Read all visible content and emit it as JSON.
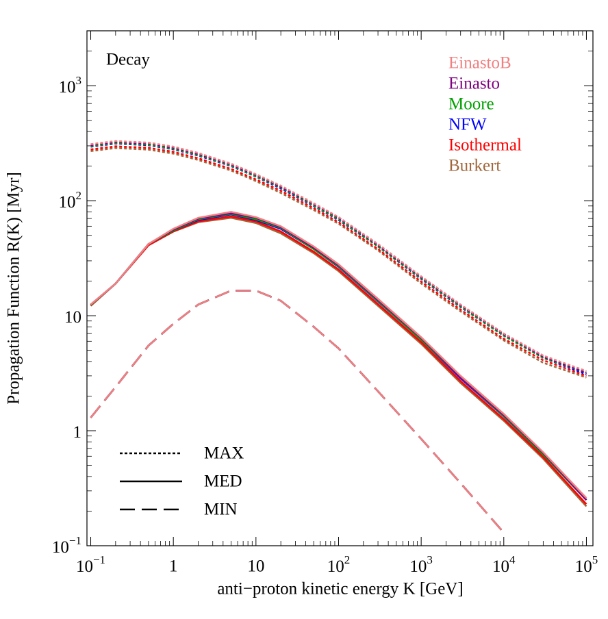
{
  "chart_data": {
    "type": "line",
    "annotation": "Decay",
    "xlabel": "anti−proton kinetic energy K [GeV]",
    "ylabel": "Propagation Function R(K) [Myr]",
    "log_x": true,
    "log_y": true,
    "xlim": [
      0.09,
      120000
    ],
    "ylim": [
      0.1,
      3000
    ],
    "xticks": [
      {
        "value": 0.1,
        "label": "10",
        "exp": "−1"
      },
      1,
      10,
      {
        "value": 100,
        "label": "10",
        "exp": "2"
      },
      {
        "value": 1000,
        "label": "10",
        "exp": "3"
      },
      {
        "value": 10000,
        "label": "10",
        "exp": "4"
      },
      {
        "value": 100000,
        "label": "10",
        "exp": "5"
      }
    ],
    "yticks": [
      {
        "value": 0.1,
        "label": "10",
        "exp": "−1"
      },
      1,
      10,
      {
        "value": 100,
        "label": "10",
        "exp": "2"
      },
      {
        "value": 1000,
        "label": "10",
        "exp": "3"
      }
    ],
    "models": [
      {
        "name": "MAX",
        "dash": "4 3"
      },
      {
        "name": "MED",
        "dash": "none"
      },
      {
        "name": "MIN",
        "dash": "22 10"
      }
    ],
    "x": [
      0.1,
      0.2,
      0.5,
      1,
      2,
      5,
      10,
      20,
      50,
      100,
      300,
      1000,
      3000,
      10000,
      30000,
      100000
    ],
    "series": [
      {
        "name": "EinastoB",
        "color": "#f08080",
        "values": [
          [
            310,
            330,
            320,
            295,
            260,
            210,
            170,
            135,
            95,
            72,
            42,
            22,
            12.5,
            7,
            4.5,
            3.3
          ],
          [
            12.5,
            19,
            42,
            57,
            71,
            80,
            72,
            60,
            40,
            28,
            14,
            6.5,
            3,
            1.4,
            0.65,
            0.26
          ],
          [
            1.3,
            2.4,
            5.5,
            8.5,
            12.5,
            16.5,
            16.5,
            13.5,
            8,
            5.2,
            2.2,
            0.85,
            0.35,
            0.13,
            null,
            null
          ]
        ]
      },
      {
        "name": "Einasto",
        "color": "#800080",
        "values": [
          [
            304,
            323,
            314,
            289,
            255,
            206,
            167,
            132,
            93,
            71,
            41,
            21.6,
            12.3,
            6.9,
            4.4,
            3.2
          ],
          [
            12.5,
            19,
            42,
            56,
            70,
            78,
            71,
            59,
            39,
            27.4,
            13.7,
            6.4,
            2.9,
            1.37,
            0.64,
            0.25
          ],
          [
            1.3,
            2.4,
            5.5,
            8.5,
            12.5,
            16.5,
            16.5,
            13.5,
            8,
            5.2,
            2.2,
            0.85,
            0.35,
            0.13,
            null,
            null
          ]
        ]
      },
      {
        "name": "Moore",
        "color": "#00a000",
        "values": [
          [
            298,
            317,
            307,
            283,
            250,
            202,
            163,
            130,
            91,
            69,
            40,
            21.1,
            12,
            6.7,
            4.3,
            3.2
          ],
          [
            12.4,
            19,
            42,
            55,
            69,
            77,
            69,
            58,
            38,
            26.9,
            13.4,
            6.2,
            2.9,
            1.34,
            0.62,
            0.25
          ],
          [
            1.3,
            2.4,
            5.5,
            8.5,
            12.5,
            16.5,
            16.5,
            13.5,
            8,
            5.2,
            2.2,
            0.85,
            0.35,
            0.13,
            null,
            null
          ]
        ]
      },
      {
        "name": "NFW",
        "color": "#0000ff",
        "values": [
          [
            295,
            314,
            304,
            280,
            247,
            200,
            162,
            128,
            90,
            68,
            40,
            20.9,
            11.9,
            6.7,
            4.3,
            3.1
          ],
          [
            12.4,
            19,
            42,
            55,
            68,
            76,
            68,
            57,
            38,
            26.6,
            13.3,
            6.2,
            2.85,
            1.33,
            0.62,
            0.25
          ],
          [
            1.3,
            2.4,
            5.5,
            8.5,
            12.5,
            16.5,
            16.5,
            13.5,
            8,
            5.2,
            2.2,
            0.85,
            0.35,
            0.13,
            null,
            null
          ]
        ]
      },
      {
        "name": "Isothermal",
        "color": "#ff0000",
        "values": [
          [
            279,
            297,
            288,
            266,
            234,
            189,
            153,
            122,
            86,
            65,
            38,
            19.8,
            11.3,
            6.3,
            4.1,
            3.0
          ],
          [
            12.3,
            19,
            41,
            54,
            66,
            73,
            66,
            54,
            36,
            25.2,
            12.6,
            5.9,
            2.7,
            1.26,
            0.59,
            0.23
          ],
          [
            1.3,
            2.4,
            5.5,
            8.5,
            12.5,
            16.5,
            16.5,
            13.5,
            8,
            5.2,
            2.2,
            0.85,
            0.35,
            0.13,
            null,
            null
          ]
        ]
      },
      {
        "name": "Burkert",
        "color": "#a0663a",
        "values": [
          [
            270,
            287,
            278,
            257,
            226,
            183,
            148,
            117,
            83,
            63,
            37,
            19.1,
            10.9,
            6.1,
            3.9,
            2.9
          ],
          [
            12.2,
            19,
            41,
            54,
            65,
            71,
            64,
            52,
            35,
            24.4,
            12.2,
            5.7,
            2.6,
            1.22,
            0.57,
            0.22
          ],
          [
            1.3,
            2.4,
            5.5,
            8.5,
            12.5,
            16.5,
            16.5,
            13.5,
            8,
            5.2,
            2.2,
            0.85,
            0.35,
            0.13,
            null,
            null
          ]
        ]
      }
    ]
  }
}
